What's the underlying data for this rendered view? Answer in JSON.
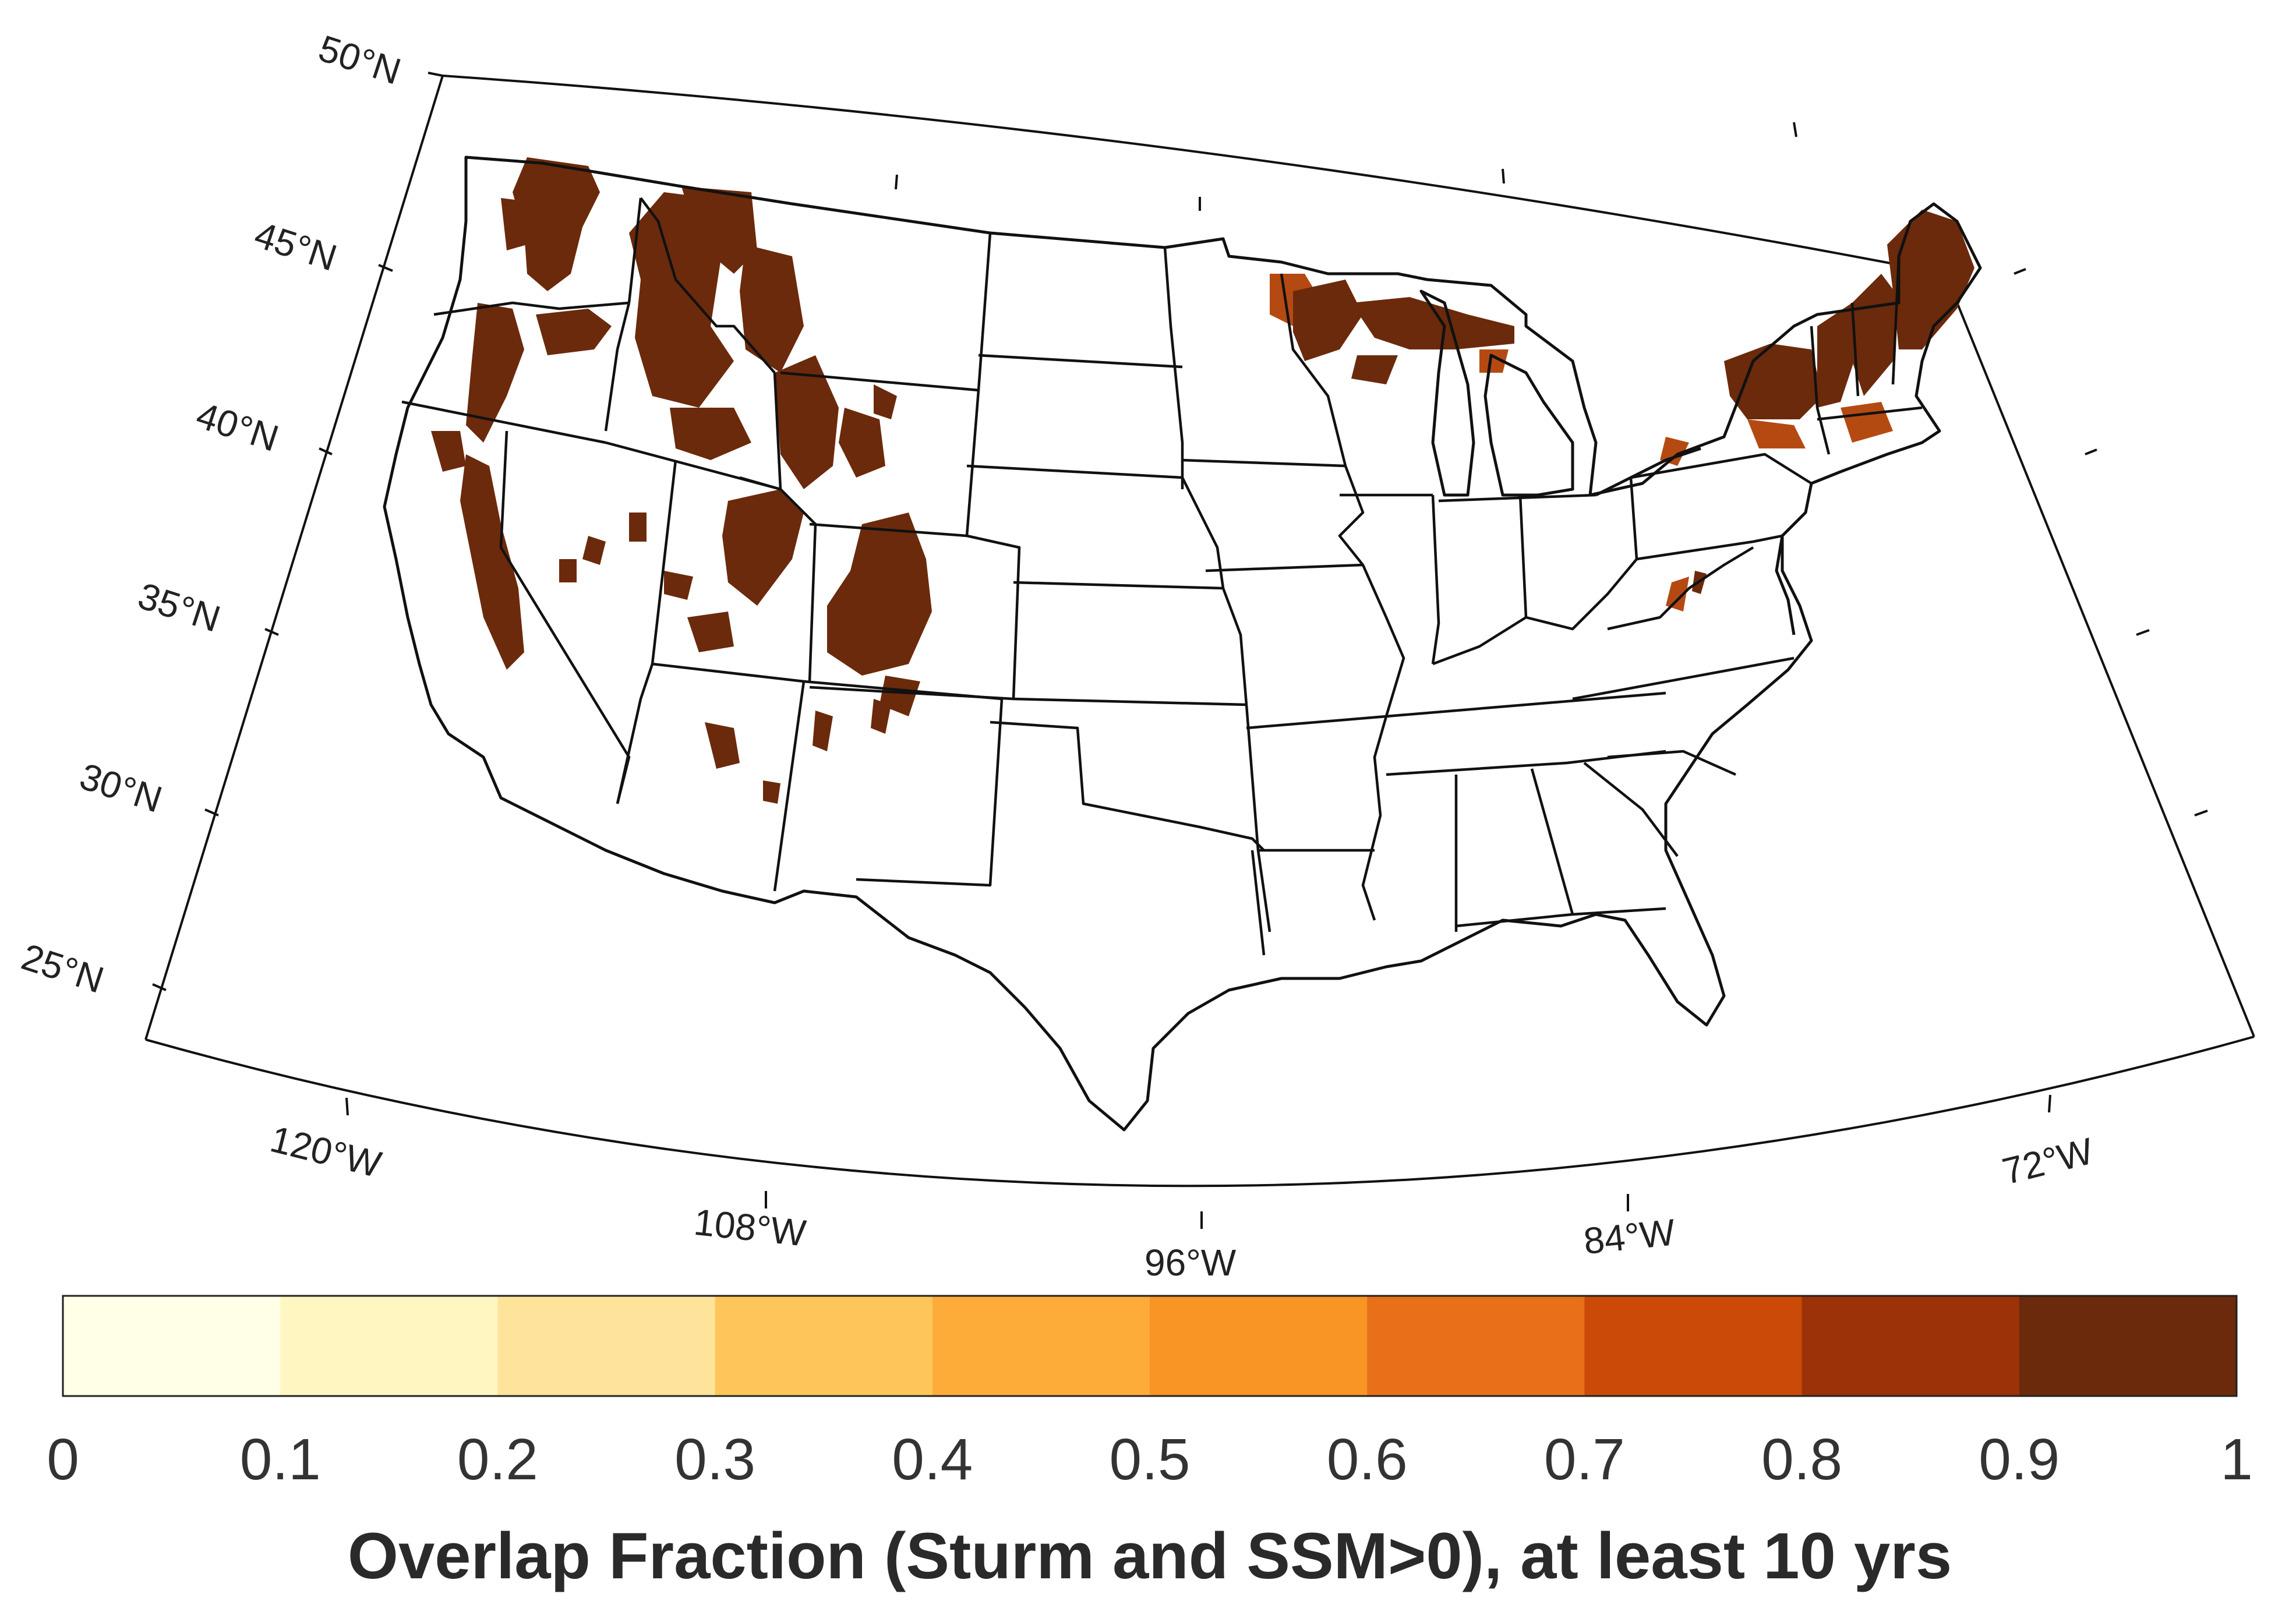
{
  "map": {
    "lat_labels": [
      "50°N",
      "45°N",
      "40°N",
      "35°N",
      "30°N",
      "25°N"
    ],
    "lon_labels": [
      "120°W",
      "108°W",
      "96°W",
      "84°W",
      "72°W"
    ]
  },
  "colorbar": {
    "title": "Overlap Fraction (Sturm and SSM>0), at least 10 yrs",
    "ticks": [
      "0",
      "0.1",
      "0.2",
      "0.3",
      "0.4",
      "0.5",
      "0.6",
      "0.7",
      "0.8",
      "0.9",
      "1"
    ],
    "colors": [
      "#fffee6",
      "#fff6c2",
      "#fde49a",
      "#fec65a",
      "#fdac3a",
      "#f89524",
      "#e77019",
      "#cc4a07",
      "#9b3208",
      "#6b2a0b"
    ]
  },
  "colors": {
    "overlap_high": "#6b2a0b",
    "overlap_mid": "#b44a12",
    "boundary": "#111111"
  }
}
